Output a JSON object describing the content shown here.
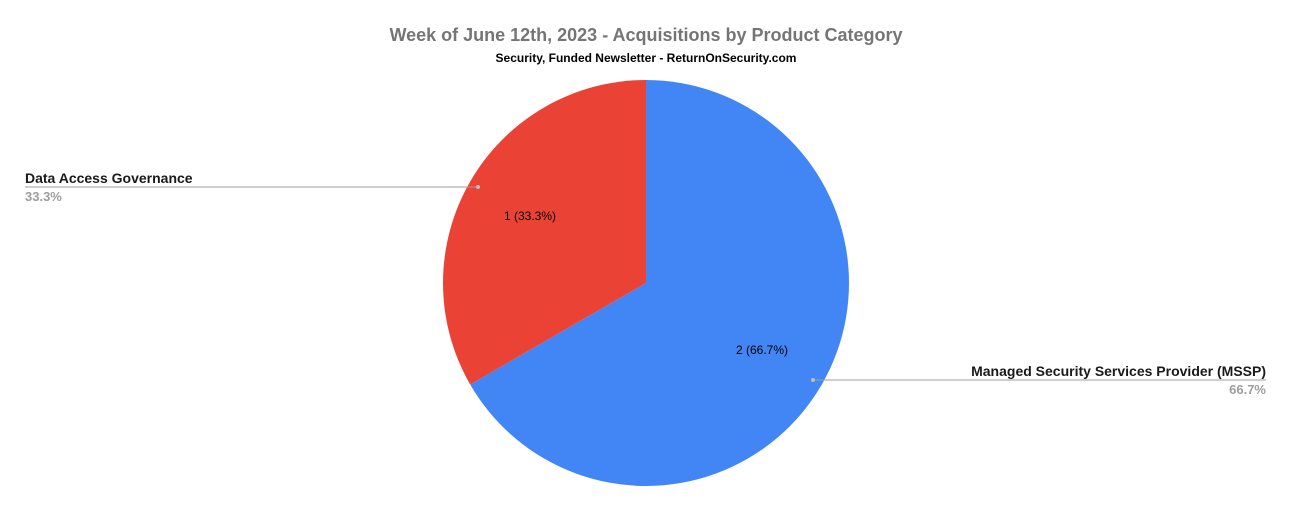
{
  "chart_data": {
    "type": "pie",
    "title": "Week of June 12th, 2023 - Acquisitions by Product Category",
    "subtitle": "Security, Funded Newsletter - ReturnOnSecurity.com",
    "legend": "callouts",
    "start_angle_deg": 0,
    "direction": "clockwise",
    "slices": [
      {
        "name": "Managed Security Services Provider (MSSP)",
        "value": 2,
        "percent": "66.7%",
        "label": "2 (66.7%)",
        "color": "#4285f4"
      },
      {
        "name": "Data Access Governance",
        "value": 1,
        "percent": "33.3%",
        "label": "1 (33.3%)",
        "color": "#ea4335"
      }
    ]
  }
}
